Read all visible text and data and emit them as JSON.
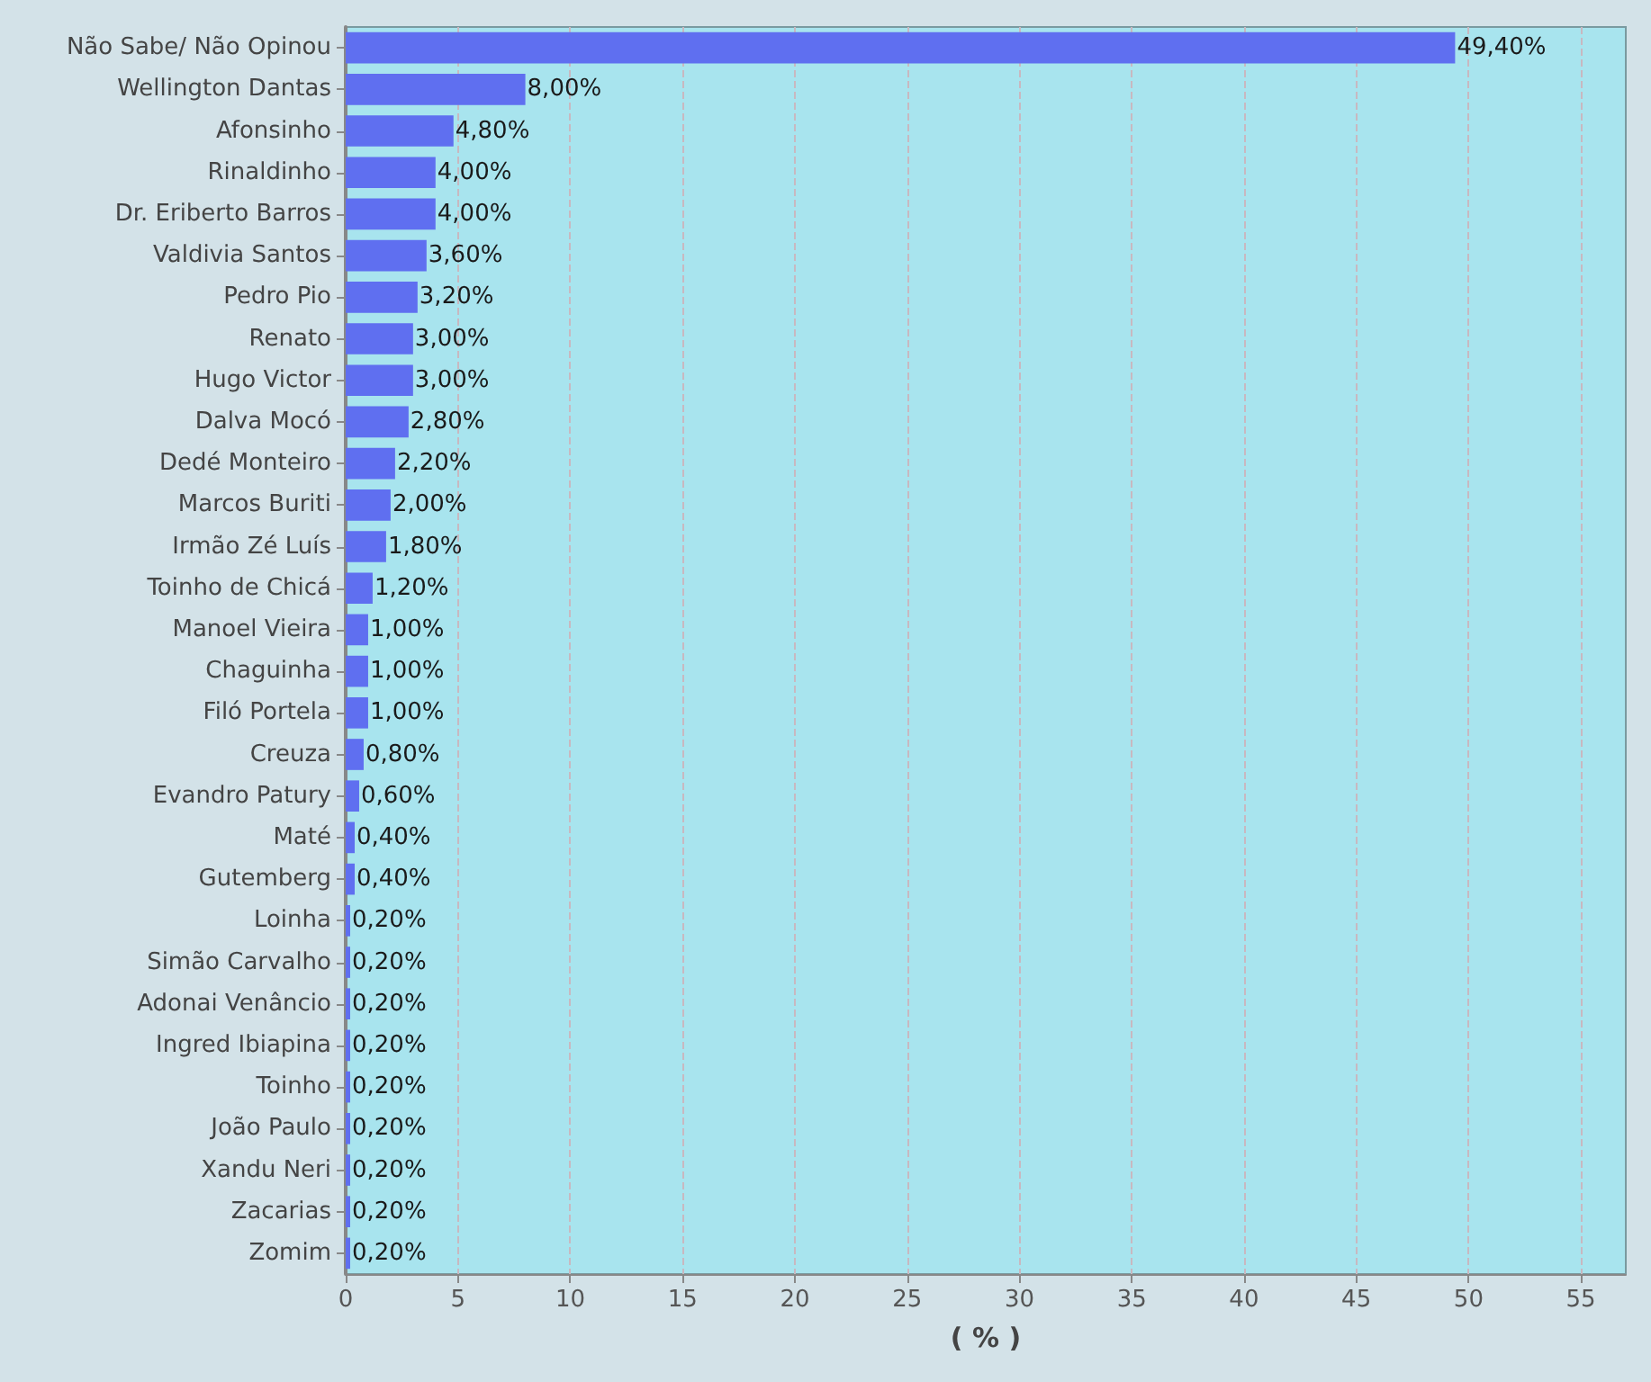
{
  "chart_data": {
    "type": "bar",
    "orientation": "horizontal",
    "xlabel": "( % )",
    "categories": [
      "Não Sabe/ Não Opinou",
      "Wellington Dantas",
      "Afonsinho",
      "Rinaldinho",
      "Dr. Eriberto Barros",
      "Valdivia Santos",
      "Pedro Pio",
      "Renato",
      "Hugo Victor",
      "Dalva Mocó",
      "Dedé Monteiro",
      "Marcos Buriti",
      "Irmão Zé Luís",
      "Toinho de Chicá",
      "Manoel Vieira",
      "Chaguinha",
      "Filó Portela",
      "Creuza",
      "Evandro Patury",
      "Maté",
      "Gutemberg",
      "Loinha",
      "Simão Carvalho",
      "Adonai Venâncio",
      "Ingred Ibiapina",
      "Toinho",
      "João Paulo",
      "Xandu Neri",
      "Zacarias",
      "Zomim"
    ],
    "values": [
      49.4,
      8,
      4.8,
      4,
      4,
      3.6,
      3.2,
      3,
      3,
      2.8,
      2.2,
      2,
      1.8,
      1.2,
      1,
      1,
      1,
      0.8,
      0.6,
      0.4,
      0.4,
      0.2,
      0.2,
      0.2,
      0.2,
      0.2,
      0.2,
      0.2,
      0.2,
      0.2
    ],
    "value_labels": [
      "49,40%",
      "8,00%",
      "4,80%",
      "4,00%",
      "4,00%",
      "3,60%",
      "3,20%",
      "3,00%",
      "3,00%",
      "2,80%",
      "2,20%",
      "2,00%",
      "1,80%",
      "1,20%",
      "1,00%",
      "1,00%",
      "1,00%",
      "0,80%",
      "0,60%",
      "0,40%",
      "0,40%",
      "0,20%",
      "0,20%",
      "0,20%",
      "0,20%",
      "0,20%",
      "0,20%",
      "0,20%",
      "0,20%",
      "0,20%"
    ],
    "color": "#5f6ff0",
    "xlim": [
      0,
      57
    ],
    "xticks": [
      0,
      5,
      10,
      15,
      20,
      25,
      30,
      35,
      40,
      45,
      50,
      55
    ],
    "grid": "x"
  }
}
